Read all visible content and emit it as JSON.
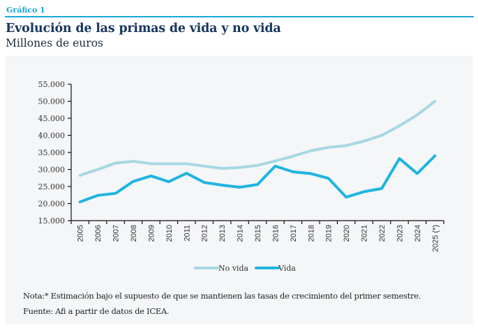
{
  "header": {
    "kicker": "Gráfico 1",
    "title": "Evolución de las primas de vida y no vida",
    "subtitle": "Millones de euros"
  },
  "colors": {
    "accent": "#1aa7d6",
    "no_vida": "#a6d8e2",
    "vida": "#1eb5e0",
    "panel": "#f4f6f8"
  },
  "chart_data": {
    "type": "line",
    "title": "Evolución de las primas de vida y no vida",
    "ylabel": "Millones de euros",
    "xlabel": "",
    "categories": [
      "2005",
      "2006",
      "2007",
      "2008",
      "2009",
      "2010",
      "2011",
      "2012",
      "2013",
      "2014",
      "2015",
      "2016",
      "2017",
      "2018",
      "2019",
      "2020",
      "2021",
      "2022",
      "2023",
      "2024",
      "2025 (*)"
    ],
    "ylim": [
      15000,
      55000
    ],
    "yticks": [
      15000,
      20000,
      25000,
      30000,
      35000,
      40000,
      45000,
      50000,
      55000
    ],
    "ytick_labels": [
      "15.000",
      "20.000",
      "25.000",
      "30.000",
      "35.000",
      "40.000",
      "45.000",
      "50.000",
      "55.000"
    ],
    "grid": false,
    "legend_position": "bottom",
    "series": [
      {
        "name": "No vida",
        "color": "#a6d8e2",
        "values": [
          28300,
          30000,
          31900,
          32400,
          31700,
          31700,
          31700,
          31000,
          30300,
          30600,
          31200,
          32500,
          33900,
          35500,
          36500,
          37000,
          38300,
          40000,
          42800,
          46000,
          50000
        ]
      },
      {
        "name": "Vida",
        "color": "#1eb5e0",
        "values": [
          20500,
          22400,
          23000,
          26500,
          28100,
          26400,
          28900,
          26200,
          25400,
          24800,
          25600,
          31000,
          29300,
          28800,
          27400,
          21900,
          23500,
          24400,
          33200,
          28800,
          34000
        ]
      }
    ]
  },
  "notes": {
    "nota": "Nota:* Estimación bajo el supuesto de que se mantienen las tasas de crecimiento del primer semestre.",
    "fuente": "Fuente: Afi a partir de datos de ICEA."
  }
}
